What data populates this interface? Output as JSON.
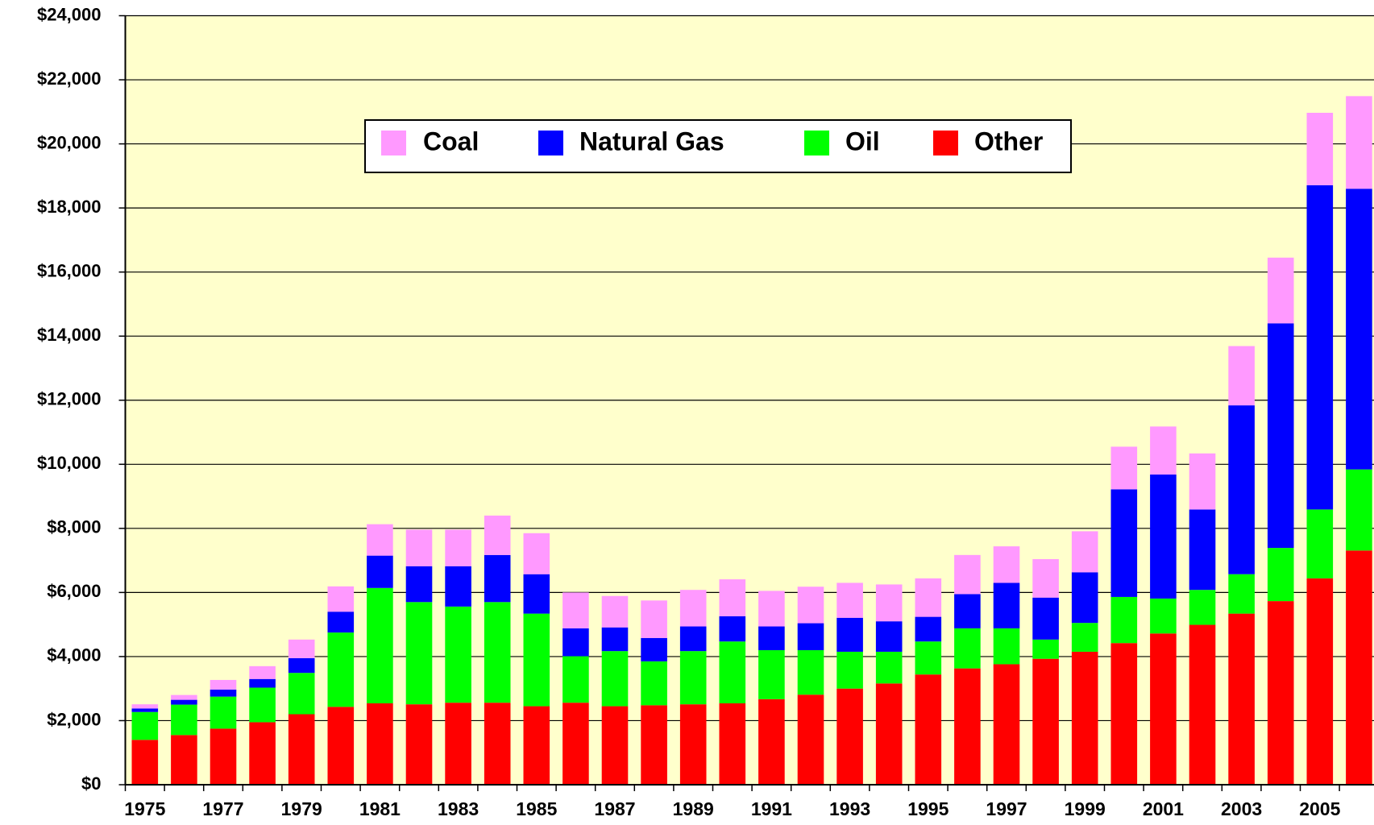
{
  "chart_data": {
    "type": "stacked_bar",
    "categories": [
      "1975",
      null,
      "1977",
      null,
      "1979",
      null,
      "1981",
      null,
      "1983",
      null,
      "1985",
      null,
      "1987",
      null,
      "1989",
      null,
      "1991",
      null,
      "1993",
      null,
      "1995",
      null,
      "1997",
      null,
      "1999",
      null,
      "2001",
      null,
      "2003",
      null,
      "2005",
      null
    ],
    "series": [
      {
        "name": "Other",
        "color": "#ff0000",
        "values": [
          1400,
          1550,
          1750,
          1950,
          2200,
          2430,
          2540,
          2510,
          2560,
          2560,
          2450,
          2560,
          2450,
          2480,
          2510,
          2540,
          2670,
          2810,
          3000,
          3160,
          3440,
          3630,
          3760,
          3930,
          4150,
          4420,
          4720,
          4990,
          5340,
          5730,
          6440,
          7310
        ]
      },
      {
        "name": "Oil",
        "color": "#00ff00",
        "values": [
          870,
          950,
          1000,
          1080,
          1290,
          2320,
          3600,
          3190,
          3000,
          3140,
          2890,
          1450,
          1720,
          1370,
          1660,
          1930,
          1530,
          1390,
          1150,
          990,
          1030,
          1250,
          1120,
          600,
          900,
          1440,
          1090,
          1090,
          1230,
          1660,
          2150,
          2530
        ]
      },
      {
        "name": "Natural Gas",
        "color": "#0000ff",
        "values": [
          110,
          150,
          220,
          270,
          460,
          650,
          1010,
          1120,
          1260,
          1470,
          1230,
          870,
          740,
          730,
          770,
          790,
          740,
          840,
          1060,
          950,
          770,
          1070,
          1420,
          1310,
          1580,
          3360,
          3870,
          2510,
          5270,
          7010,
          10120,
          8760
        ]
      },
      {
        "name": "Coal",
        "color": "#ff99ff",
        "values": [
          130,
          150,
          300,
          400,
          580,
          790,
          980,
          1140,
          1140,
          1230,
          1280,
          1120,
          980,
          1170,
          1140,
          1150,
          1110,
          1140,
          1090,
          1150,
          1200,
          1220,
          1140,
          1200,
          1280,
          1330,
          1500,
          1750,
          1850,
          2050,
          2260,
          2890
        ]
      }
    ],
    "ylim": [
      0,
      24000
    ],
    "yticks": [
      {
        "value": 0,
        "label": "$0"
      },
      {
        "value": 2000,
        "label": "$2,000"
      },
      {
        "value": 4000,
        "label": "$4,000"
      },
      {
        "value": 6000,
        "label": "$6,000"
      },
      {
        "value": 8000,
        "label": "$8,000"
      },
      {
        "value": 10000,
        "label": "$10,000"
      },
      {
        "value": 12000,
        "label": "$12,000"
      },
      {
        "value": 14000,
        "label": "$14,000"
      },
      {
        "value": 16000,
        "label": "$16,000"
      },
      {
        "value": 18000,
        "label": "$18,000"
      },
      {
        "value": 20000,
        "label": "$20,000"
      },
      {
        "value": 22000,
        "label": "$22,000"
      },
      {
        "value": 24000,
        "label": "$24,000"
      }
    ],
    "grid": true,
    "legend": "top",
    "background": "#ffffcc"
  }
}
